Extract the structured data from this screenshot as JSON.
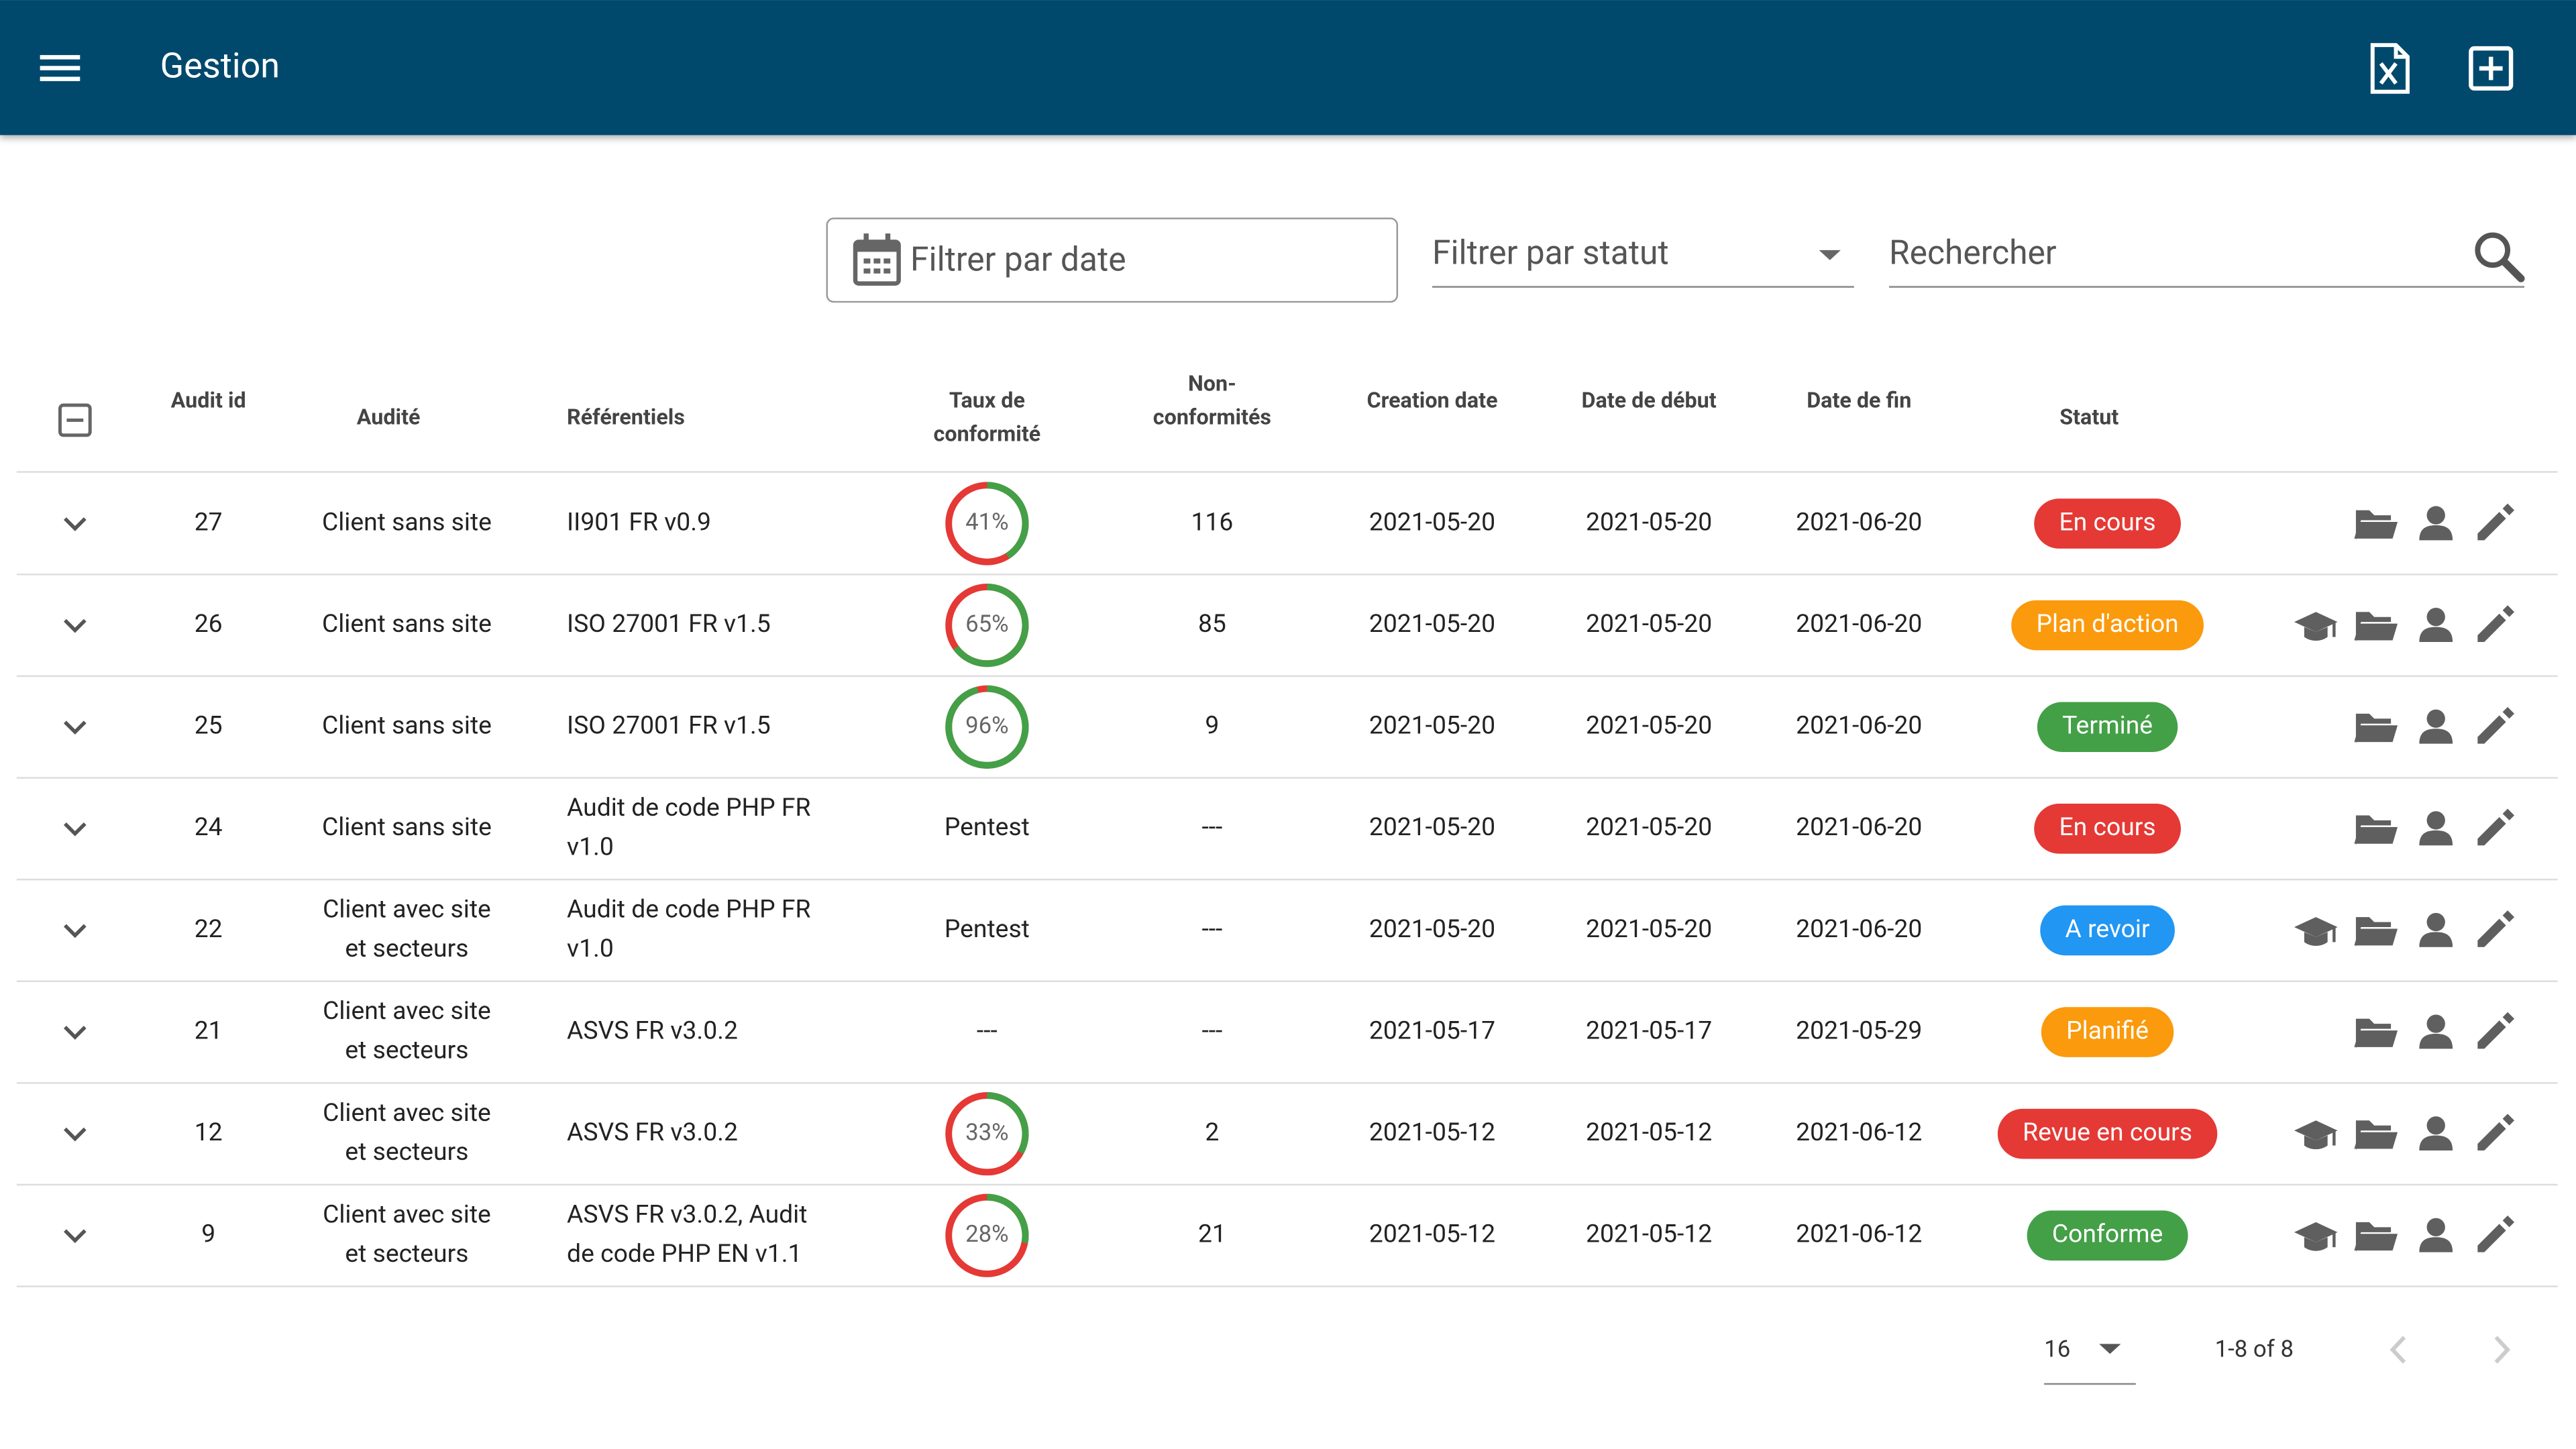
{
  "header": {
    "title": "Gestion"
  },
  "filters": {
    "date": "Filtrer par date",
    "status": "Filtrer par statut",
    "search": "Rechercher"
  },
  "table": {
    "columns": [
      "Audit id",
      "Audité",
      "Référentiels",
      [
        "Taux de",
        "conformité"
      ],
      [
        "Non-",
        "conformités"
      ],
      "Creation date",
      "Date de début",
      "Date de fin",
      "Statut"
    ],
    "rows": [
      {
        "id": "27",
        "auditee": [
          "Client sans site"
        ],
        "framework": [
          "II901 FR v0.9"
        ],
        "conformity": {
          "value": 41,
          "label": "41%"
        },
        "nonconformities": "116",
        "created": "2021-05-20",
        "start": "2021-05-20",
        "end": "2021-06-20",
        "status": "En cours",
        "status_color": "#e53935",
        "has_training_icon": false
      },
      {
        "id": "26",
        "auditee": [
          "Client sans site"
        ],
        "framework": [
          "ISO 27001 FR v1.5"
        ],
        "conformity": {
          "value": 65,
          "label": "65%"
        },
        "nonconformities": "85",
        "created": "2021-05-20",
        "start": "2021-05-20",
        "end": "2021-06-20",
        "status": "Plan d'action",
        "status_color": "#fb9a0c",
        "has_training_icon": true
      },
      {
        "id": "25",
        "auditee": [
          "Client sans site"
        ],
        "framework": [
          "ISO 27001 FR v1.5"
        ],
        "conformity": {
          "value": 96,
          "label": "96%"
        },
        "nonconformities": "9",
        "created": "2021-05-20",
        "start": "2021-05-20",
        "end": "2021-06-20",
        "status": "Terminé",
        "status_color": "#43a047",
        "has_training_icon": false
      },
      {
        "id": "24",
        "auditee": [
          "Client sans site"
        ],
        "framework": [
          "Audit de code PHP FR",
          "v1.0"
        ],
        "conformity": "Pentest",
        "nonconformities": "---",
        "created": "2021-05-20",
        "start": "2021-05-20",
        "end": "2021-06-20",
        "status": "En cours",
        "status_color": "#e53935",
        "has_training_icon": false
      },
      {
        "id": "22",
        "auditee": [
          "Client avec site",
          "et secteurs"
        ],
        "framework": [
          "Audit de code PHP FR",
          "v1.0"
        ],
        "conformity": "Pentest",
        "nonconformities": "---",
        "created": "2021-05-20",
        "start": "2021-05-20",
        "end": "2021-06-20",
        "status": "A revoir",
        "status_color": "#2196f3",
        "has_training_icon": true
      },
      {
        "id": "21",
        "auditee": [
          "Client avec site",
          "et secteurs"
        ],
        "framework": [
          "ASVS FR v3.0.2"
        ],
        "conformity": "---",
        "nonconformities": "---",
        "created": "2021-05-17",
        "start": "2021-05-17",
        "end": "2021-05-29",
        "status": "Planifié",
        "status_color": "#fb9a0c",
        "has_training_icon": false
      },
      {
        "id": "12",
        "auditee": [
          "Client avec site",
          "et secteurs"
        ],
        "framework": [
          "ASVS FR v3.0.2"
        ],
        "conformity": {
          "value": 33,
          "label": "33%"
        },
        "nonconformities": "2",
        "created": "2021-05-12",
        "start": "2021-05-12",
        "end": "2021-06-12",
        "status": "Revue en cours",
        "status_color": "#e53935",
        "has_training_icon": true
      },
      {
        "id": "9",
        "auditee": [
          "Client avec site",
          "et secteurs"
        ],
        "framework": [
          "ASVS FR v3.0.2, Audit",
          "de code PHP EN v1.1"
        ],
        "conformity": {
          "value": 28,
          "label": "28%"
        },
        "nonconformities": "21",
        "created": "2021-05-12",
        "start": "2021-05-12",
        "end": "2021-06-12",
        "status": "Conforme",
        "status_color": "#43a047",
        "has_training_icon": true
      }
    ]
  },
  "pagination": {
    "per_page": "16",
    "range": "1-8 of 8"
  }
}
